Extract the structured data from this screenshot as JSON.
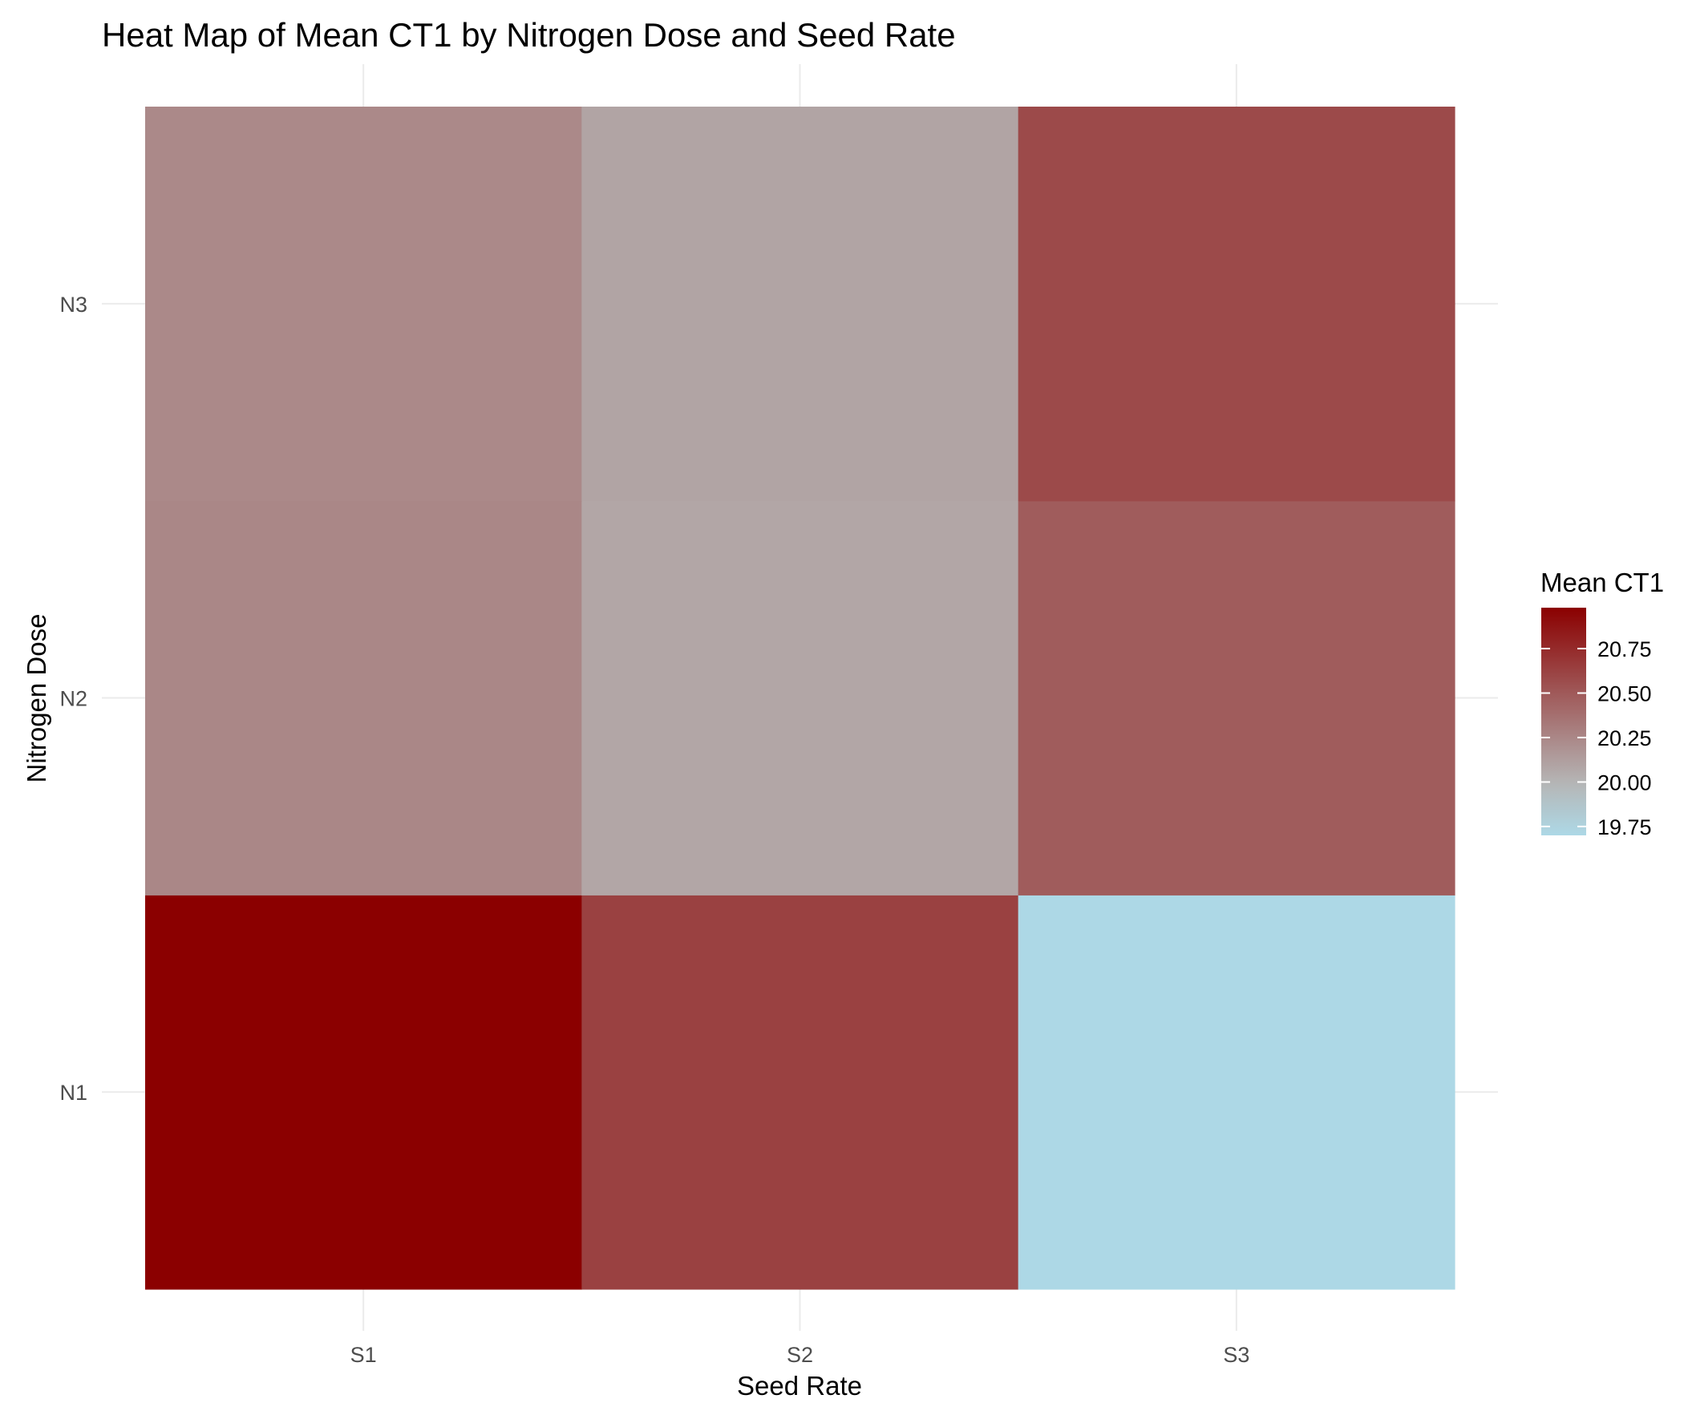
{
  "chart_data": {
    "type": "heatmap",
    "title": "Heat Map of Mean CT1 by Nitrogen Dose and Seed Rate",
    "xlabel": "Seed Rate",
    "ylabel": "Nitrogen Dose",
    "x_categories": [
      "S1",
      "S2",
      "S3"
    ],
    "y_categories": [
      "N1",
      "N2",
      "N3"
    ],
    "values": [
      [
        20.98,
        20.63,
        19.7
      ],
      [
        20.25,
        20.08,
        20.48
      ],
      [
        20.24,
        20.09,
        20.58
      ]
    ],
    "color_scale": {
      "low": "#add8e6",
      "mid": "#b5b5b5",
      "high": "#8b0000",
      "midpoint": 20.0,
      "min": 19.7,
      "max": 20.98
    },
    "legend": {
      "title": "Mean CT1",
      "ticks": [
        20.75,
        20.5,
        20.25,
        20.0,
        19.75
      ],
      "tick_labels": [
        "20.75",
        "20.50",
        "20.25",
        "20.00",
        "19.75"
      ],
      "position": "right"
    },
    "grid": true
  }
}
